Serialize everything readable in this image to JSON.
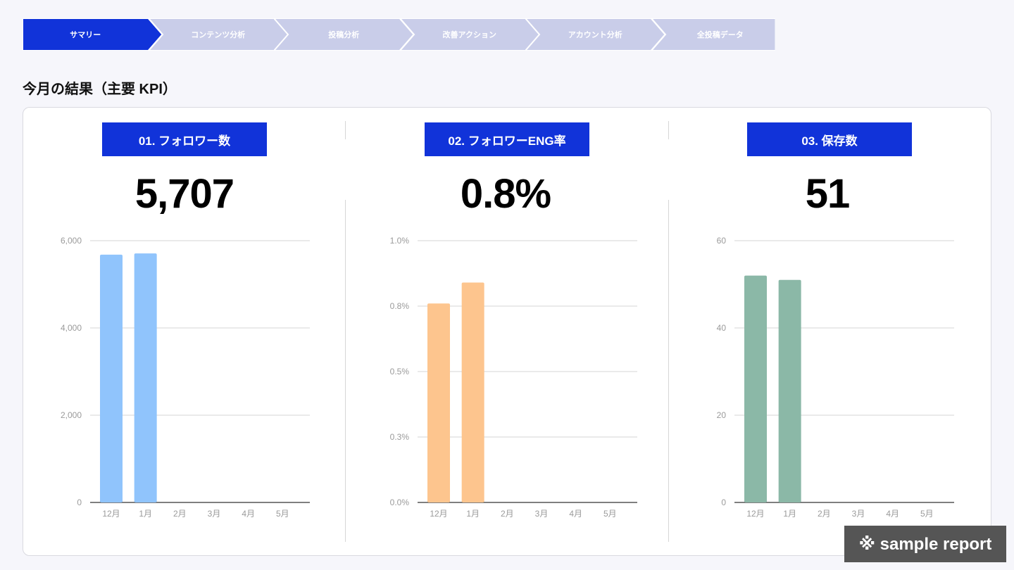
{
  "nav": {
    "steps": [
      {
        "label": "サマリー",
        "active": true
      },
      {
        "label": "コンテンツ分析",
        "active": false
      },
      {
        "label": "投稿分析",
        "active": false
      },
      {
        "label": "改善アクション",
        "active": false
      },
      {
        "label": "アカウント分析",
        "active": false
      },
      {
        "label": "全投稿データ",
        "active": false
      }
    ],
    "active_color": "#1133d9",
    "inactive_color": "#c9cde9"
  },
  "section_title": "今月の結果（主要 KPI）",
  "kpis": [
    {
      "label": "01. フォロワー数",
      "value": "5,707"
    },
    {
      "label": "02. フォロワーENG率",
      "value": "0.8%"
    },
    {
      "label": "03. 保存数",
      "value": "51"
    }
  ],
  "chart_data": [
    {
      "type": "bar",
      "categories": [
        "12月",
        "1月",
        "2月",
        "3月",
        "4月",
        "5月"
      ],
      "values": [
        5680,
        5707,
        null,
        null,
        null,
        null
      ],
      "ylim": [
        0,
        6000
      ],
      "yticks": [
        0,
        2000,
        4000,
        6000
      ],
      "ytick_labels": [
        "0",
        "2,000",
        "4,000",
        "6,000"
      ],
      "color": "#90c4fc",
      "grid": true
    },
    {
      "type": "bar",
      "categories": [
        "12月",
        "1月",
        "2月",
        "3月",
        "4月",
        "5月"
      ],
      "values": [
        0.76,
        0.84,
        null,
        null,
        null,
        null
      ],
      "ylim": [
        0,
        1.0
      ],
      "yticks": [
        0,
        0.25,
        0.5,
        0.75,
        1.0
      ],
      "ytick_labels": [
        "0.0%",
        "0.3%",
        "0.5%",
        "0.8%",
        "1.0%"
      ],
      "color": "#fdc58e",
      "grid": true
    },
    {
      "type": "bar",
      "categories": [
        "12月",
        "1月",
        "2月",
        "3月",
        "4月",
        "5月"
      ],
      "values": [
        52,
        51,
        null,
        null,
        null,
        null
      ],
      "ylim": [
        0,
        60
      ],
      "yticks": [
        0,
        20,
        40,
        60
      ],
      "ytick_labels": [
        "0",
        "20",
        "40",
        "60"
      ],
      "color": "#8bb8a7",
      "grid": true
    }
  ],
  "badge": "※ sample report"
}
